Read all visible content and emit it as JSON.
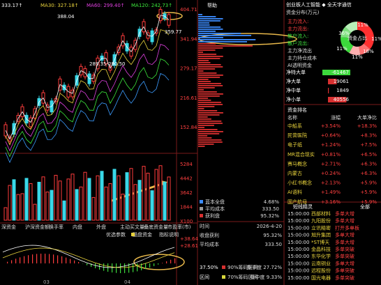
{
  "kline": {
    "ma_labels": [
      "333.17↑",
      "MA30: 327.18↑",
      "MA60: 299.40↑",
      "MA120: 242.73↑"
    ],
    "price_axis": [
      "404.71",
      "341.94",
      "279.17",
      "216.61",
      "152.84"
    ],
    "annotations": [
      "388.04",
      "359.77",
      "289.35-290.50"
    ],
    "volume_axis": [
      "5284",
      "4442",
      "3642",
      "1844",
      "X100"
    ],
    "tabs": [
      "深资金",
      "沪深资金额",
      "换手率",
      "内盘",
      "外盘",
      "主动买文量",
      "叠底资金量",
      "市盈率(市)"
    ],
    "buttons": [
      "优选参数",
      "酷盘资金",
      "指标说明"
    ],
    "macd_axis": [
      "+38.64",
      "+28.61"
    ],
    "x_labels": [
      "03",
      "04"
    ]
  },
  "chips": {
    "help": "帮助",
    "legend": [
      [
        "蓝本全盘",
        "4.68%"
      ],
      [
        "平均成本",
        "333.50"
      ],
      [
        "获利盘",
        "95.32%"
      ]
    ],
    "info": [
      [
        "时间",
        "2026-4-20"
      ],
      [
        "收盘获利",
        "95.32%"
      ],
      [
        "平均成本",
        "333.50"
      ]
    ],
    "bands": [
      [
        "37.50%",
        "90%筹码区间",
        "集中度 27.72%"
      ],
      [
        "区间",
        "70%筹码区间",
        "集中度 9.33%"
      ]
    ]
  },
  "funds": {
    "header": "创业板人工智能 ◆ 全天字通信",
    "title": "资金分布(万元)",
    "flows": [
      "主力流入:",
      "主力流出:",
      "散户流入:",
      "散户流出:",
      "主力净流出",
      "主力持仓成本",
      "AI透明资金"
    ],
    "donut_center": "资金占比",
    "donut_pct": [
      "11%",
      "36%",
      "11%",
      "18%",
      "11%",
      "11%"
    ],
    "net": [
      {
        "label": "净特大单",
        "value": -61467
      },
      {
        "label": "净大单",
        "value": 19061
      },
      {
        "label": "净中单",
        "value": 1849
      },
      {
        "label": "净小单",
        "value": 40556
      }
    ],
    "ranking_title": "资金排名",
    "ranking_header": [
      "名称",
      "涨幅",
      "大单净比"
    ],
    "ranking": [
      [
        "中船系",
        "+3.54%",
        "+18.3%"
      ],
      [
        "民营医院",
        "+0.64%",
        "+8.3%"
      ],
      [
        "电子纸",
        "+1.24%",
        "+7.5%"
      ],
      [
        "MR混合现实",
        "+0.81%",
        "+6.5%"
      ],
      [
        "赛马概念",
        "+2.71%",
        "+6.3%"
      ],
      [
        "内蒙古",
        "+0.24%",
        "+6.3%"
      ],
      [
        "小红书概念",
        "+2.13%",
        "+5.9%"
      ],
      [
        "AI语料",
        "+1.49%",
        "+5.9%"
      ],
      [
        "国产航母",
        "+3.16%",
        "+5.9%"
      ]
    ],
    "news_tabs": [
      "短线精灵",
      "全部"
    ],
    "news": [
      [
        "15:00:00",
        "西部材料",
        "多单大增"
      ],
      [
        "15:00:00",
        "九阳股份",
        "多单大增"
      ],
      [
        "15:00:00",
        "立讯精密",
        "打开多单板"
      ],
      [
        "15:00:00",
        "旭升集团",
        "多单大增"
      ],
      [
        "15:00:00",
        "*ST博天",
        "多单大增"
      ],
      [
        "15:00:00",
        "金晶科技",
        "多单突破"
      ],
      [
        "15:00:00",
        "东华化学",
        "多单突破"
      ],
      [
        "15:00:00",
        "云南铜业",
        "多单大增"
      ],
      [
        "15:00:00",
        "远程股份",
        "多单突破"
      ],
      [
        "15:00:00",
        "国光电器",
        "多单突破"
      ]
    ]
  }
}
